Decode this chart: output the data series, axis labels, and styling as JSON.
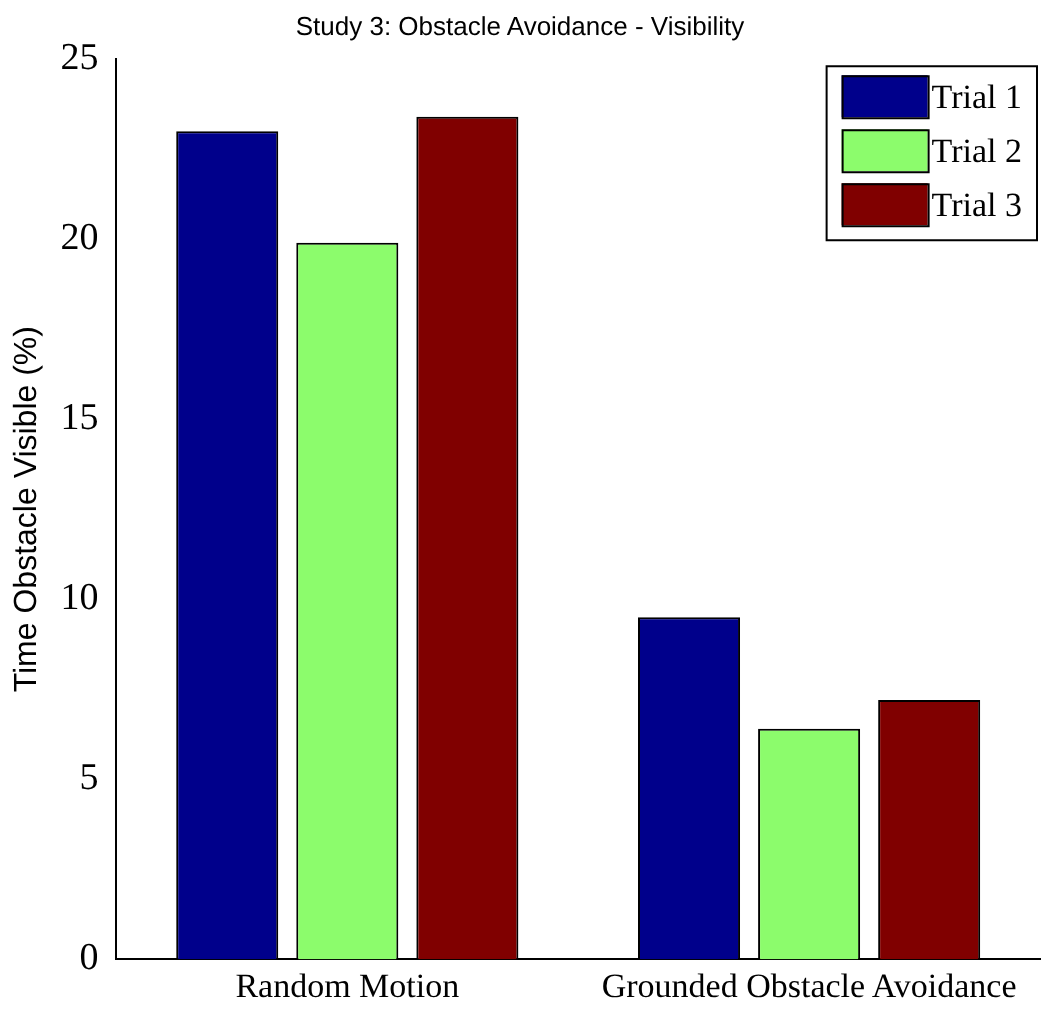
{
  "chart_data": {
    "type": "bar",
    "title": "Study 3: Obstacle Avoidance - Visibility",
    "ylabel": "Time Obstacle Visible (%)",
    "categories": [
      "Random Motion",
      "Grounded Obstacle Avoidance"
    ],
    "series": [
      {
        "name": "Trial 1",
        "color": "#00008b",
        "values": [
          23.0,
          9.5
        ]
      },
      {
        "name": "Trial 2",
        "color": "#8cfc6c",
        "values": [
          19.9,
          6.4
        ]
      },
      {
        "name": "Trial 3",
        "color": "#800000",
        "values": [
          23.4,
          7.2
        ]
      }
    ],
    "ylim": [
      0,
      25
    ],
    "yticks": [
      0,
      5,
      10,
      15,
      20,
      25
    ],
    "grid": false,
    "legend": "top right"
  }
}
